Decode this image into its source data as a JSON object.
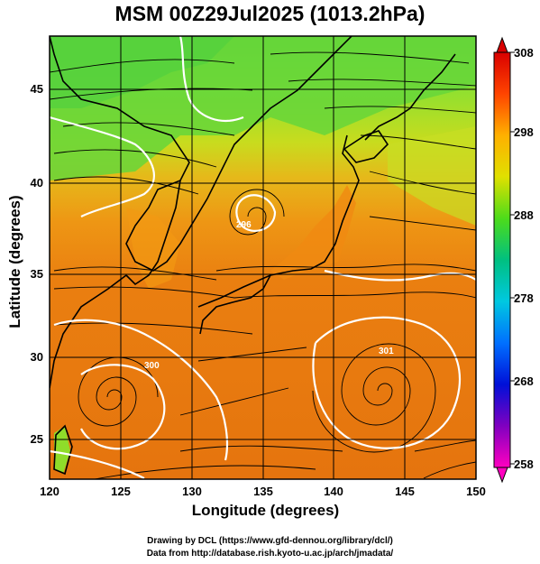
{
  "title": "MSM 00Z29Jul2025 (1013.2hPa)",
  "x_axis": {
    "label": "Longitude (degrees)",
    "ticks": [
      "120",
      "125",
      "130",
      "135",
      "140",
      "145",
      "150"
    ]
  },
  "y_axis": {
    "label": "Latitude  (degrees)",
    "ticks": [
      "25",
      "30",
      "35",
      "40",
      "45"
    ]
  },
  "colorbar": {
    "ticks": [
      "308",
      "298",
      "288",
      "278",
      "268",
      "258"
    ],
    "min": 258,
    "max": 308
  },
  "footer": {
    "line1": "Drawing by DCL (https://www.gfd-dennou.org/library/dcl/)",
    "line2": "Data from http://database.rish.kyoto-u.ac.jp/arch/jmadata/"
  },
  "map": {
    "lon_range": [
      120,
      150
    ],
    "lat_range": [
      22.5,
      47.5
    ],
    "contour_labels": [
      "296",
      "300",
      "301"
    ]
  },
  "colors": {
    "warm": "#e8750f",
    "green": "#6fd33c",
    "yellow": "#d8d81e"
  }
}
